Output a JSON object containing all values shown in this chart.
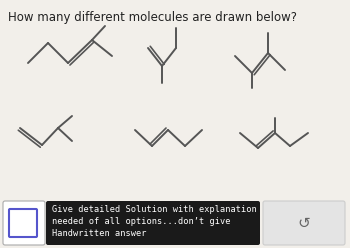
{
  "title": "How many different molecules are drawn below?",
  "title_fontsize": 8.5,
  "bg_color": "#f2efea",
  "line_color": "#555555",
  "lw": 1.4,
  "bottom_bar": {
    "text_lines": [
      "Give detailed Solution with explanation",
      "needed of all options...don’t give",
      "Handwritten answer"
    ],
    "text_fontsize": 6.2,
    "text_box_color": "#1a1a1a",
    "text_color": "#ffffff",
    "refresh_symbol": "↺",
    "refresh_fontsize": 11,
    "refresh_color": "#e0e0e0"
  }
}
